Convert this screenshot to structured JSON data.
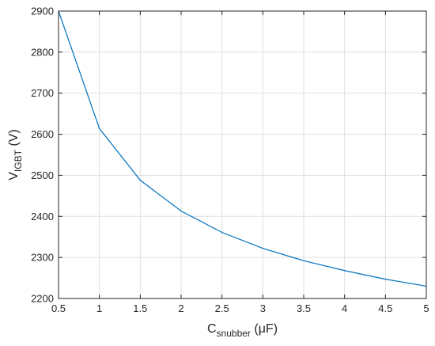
{
  "chart_data": {
    "type": "line",
    "x": [
      0.5,
      1,
      1.5,
      2,
      2.5,
      3,
      3.5,
      4,
      4.5,
      5
    ],
    "series": [
      {
        "values": [
          2900,
          2614,
          2488,
          2413,
          2361,
          2322,
          2292,
          2268,
          2247,
          2230
        ],
        "color": "#0072BD"
      }
    ],
    "xlabel": {
      "main": "C",
      "sub": "snubber",
      "rest": " (μF)"
    },
    "ylabel": {
      "main": "V",
      "sub": "IGBT",
      "rest": " (V)"
    },
    "xlim": [
      0.5,
      5
    ],
    "ylim": [
      2200,
      2900
    ],
    "xticks": [
      0.5,
      1,
      1.5,
      2,
      2.5,
      3,
      3.5,
      4,
      4.5,
      5
    ],
    "xtick_labels": [
      "0.5",
      "1",
      "1.5",
      "2",
      "2.5",
      "3",
      "3.5",
      "4",
      "4.5",
      "5"
    ],
    "yticks": [
      2200,
      2300,
      2400,
      2500,
      2600,
      2700,
      2800,
      2900
    ],
    "ytick_labels": [
      "2200",
      "2300",
      "2400",
      "2500",
      "2600",
      "2700",
      "2800",
      "2900"
    ],
    "grid": true
  }
}
